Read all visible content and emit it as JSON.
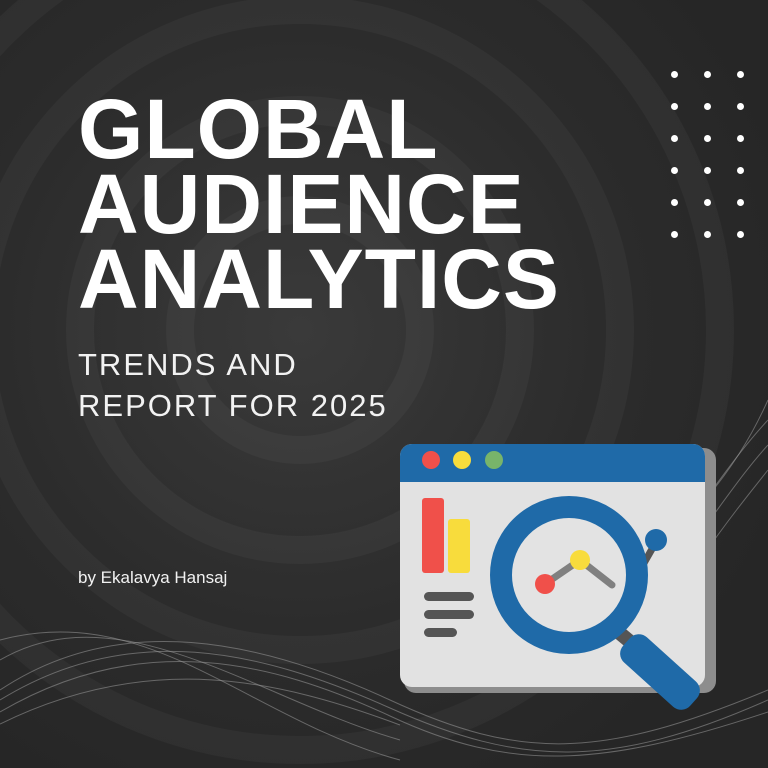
{
  "title_lines": [
    "GLOBAL",
    "AUDIENCE",
    "ANALYTICS"
  ],
  "subtitle_lines": [
    "TRENDS AND",
    "REPORT FOR 2025"
  ],
  "byline": "by Ekalavya Hansaj",
  "illustration": {
    "icon": "browser-window-analytics-magnifier-icon",
    "colors": {
      "frame": "#1f6aa8",
      "window": "#e4e4e4",
      "red": "#f0504a",
      "yellow": "#f8dc3c",
      "green": "#78b46a",
      "gray": "#555555"
    }
  },
  "colors": {
    "background": "#2a2a2a",
    "text": "#ffffff"
  }
}
